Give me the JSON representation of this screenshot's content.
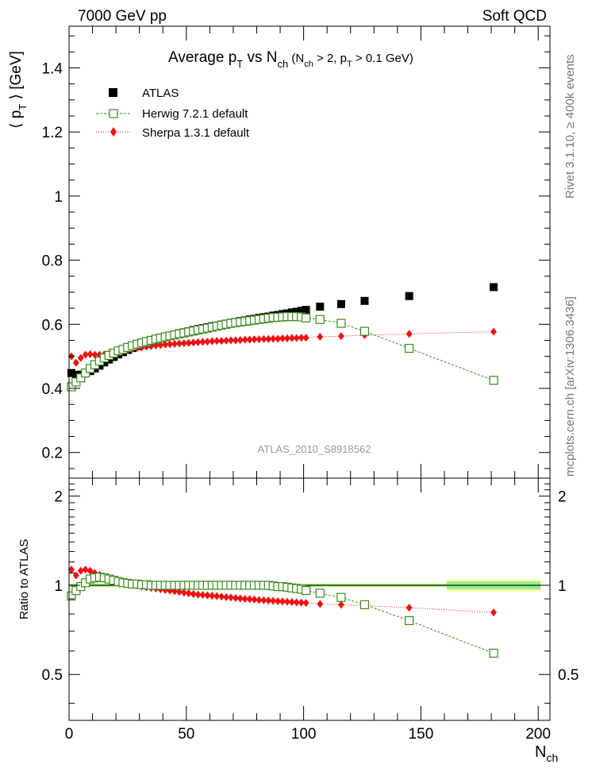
{
  "header": {
    "left": "7000 GeV pp",
    "right": "Soft QCD"
  },
  "side_labels": {
    "rivet": "Rivet 3.1.10, ≥ 400k events",
    "mcplots": "mcplots.cern.ch [arXiv:1306.3436]"
  },
  "watermark": "ATLAS_2010_S8918562",
  "colors": {
    "atlas": "#000000",
    "herwig": "#3a8a1e",
    "sherpa": "#ee1111",
    "band_inner": "#90ee90",
    "band_outer": "#ffff88"
  },
  "chart_data": [
    {
      "type": "scatter",
      "title": "Average p_T vs N_ch (N_ch > 2, p_T > 0.1 GeV)",
      "title_parts": {
        "a": "Average p",
        "b": "T",
        "c": " vs N",
        "d": "ch",
        "e": " (N",
        "f": "ch",
        "g": " > 2, p",
        "h": "T",
        "i": " > 0.1 GeV)"
      },
      "ylabel": "⟨ p_T ⟩ [GeV]",
      "ylabel_parts": {
        "a": "⟨ p",
        "b": "T",
        "c": " ⟩ [GeV]"
      },
      "xlim": [
        0,
        205
      ],
      "ylim": [
        0.12,
        1.53
      ],
      "yticks": [
        "0.2",
        "0.4",
        "0.6",
        "0.8",
        "1",
        "1.2",
        "1.4"
      ],
      "legend_position": "top-left",
      "series": [
        {
          "name": "ATLAS",
          "marker": "filled-square",
          "x": [
            1,
            3,
            5,
            7,
            9,
            11,
            13,
            15,
            17,
            19,
            21,
            23,
            25,
            27,
            29,
            31,
            33,
            35,
            37,
            39,
            41,
            43,
            45,
            47,
            49,
            51,
            53,
            55,
            57,
            59,
            61,
            63,
            65,
            67,
            69,
            71,
            73,
            75,
            77,
            79,
            81,
            83,
            85,
            87,
            89,
            91,
            93,
            95,
            97,
            99,
            101,
            107,
            116,
            126,
            145,
            181
          ],
          "y": [
            0.448,
            0.442,
            0.443,
            0.447,
            0.454,
            0.462,
            0.471,
            0.481,
            0.49,
            0.498,
            0.506,
            0.513,
            0.52,
            0.526,
            0.532,
            0.537,
            0.542,
            0.547,
            0.552,
            0.556,
            0.56,
            0.564,
            0.568,
            0.572,
            0.575,
            0.578,
            0.582,
            0.585,
            0.588,
            0.591,
            0.594,
            0.596,
            0.599,
            0.602,
            0.605,
            0.607,
            0.61,
            0.612,
            0.615,
            0.617,
            0.62,
            0.622,
            0.624,
            0.627,
            0.629,
            0.632,
            0.634,
            0.637,
            0.639,
            0.642,
            0.645,
            0.655,
            0.663,
            0.673,
            0.688,
            0.716
          ]
        },
        {
          "name": "Herwig 7.2.1 default",
          "marker": "open-square",
          "line": "dashed",
          "x": [
            1,
            3,
            5,
            7,
            9,
            11,
            13,
            15,
            17,
            19,
            21,
            23,
            25,
            27,
            29,
            31,
            33,
            35,
            37,
            39,
            41,
            43,
            45,
            47,
            49,
            51,
            53,
            55,
            57,
            59,
            61,
            63,
            65,
            67,
            69,
            71,
            73,
            75,
            77,
            79,
            81,
            83,
            85,
            87,
            89,
            91,
            93,
            95,
            97,
            99,
            101,
            107,
            116,
            126,
            145,
            181
          ],
          "y": [
            0.405,
            0.42,
            0.433,
            0.448,
            0.462,
            0.474,
            0.485,
            0.495,
            0.503,
            0.51,
            0.517,
            0.522,
            0.528,
            0.533,
            0.538,
            0.542,
            0.546,
            0.55,
            0.554,
            0.557,
            0.561,
            0.564,
            0.567,
            0.57,
            0.573,
            0.576,
            0.579,
            0.582,
            0.585,
            0.588,
            0.591,
            0.594,
            0.597,
            0.6,
            0.603,
            0.605,
            0.607,
            0.609,
            0.611,
            0.613,
            0.615,
            0.617,
            0.619,
            0.621,
            0.622,
            0.623,
            0.624,
            0.624,
            0.624,
            0.623,
            0.62,
            0.615,
            0.603,
            0.578,
            0.525,
            0.425
          ]
        },
        {
          "name": "Sherpa 1.3.1 default",
          "marker": "filled-diamond",
          "line": "dotted",
          "x": [
            1,
            3,
            5,
            7,
            9,
            11,
            13,
            15,
            17,
            19,
            21,
            23,
            25,
            27,
            29,
            31,
            33,
            35,
            37,
            39,
            41,
            43,
            45,
            47,
            49,
            51,
            53,
            55,
            57,
            59,
            61,
            63,
            65,
            67,
            69,
            71,
            73,
            75,
            77,
            79,
            81,
            83,
            85,
            87,
            89,
            91,
            93,
            95,
            97,
            99,
            101,
            107,
            116,
            126,
            145,
            181
          ],
          "y": [
            0.5,
            0.48,
            0.495,
            0.505,
            0.507,
            0.505,
            0.505,
            0.506,
            0.508,
            0.511,
            0.514,
            0.517,
            0.52,
            0.523,
            0.526,
            0.528,
            0.53,
            0.532,
            0.534,
            0.535,
            0.537,
            0.538,
            0.539,
            0.54,
            0.541,
            0.542,
            0.543,
            0.544,
            0.545,
            0.546,
            0.547,
            0.548,
            0.548,
            0.549,
            0.55,
            0.55,
            0.551,
            0.552,
            0.552,
            0.553,
            0.553,
            0.554,
            0.554,
            0.555,
            0.555,
            0.556,
            0.556,
            0.557,
            0.557,
            0.558,
            0.558,
            0.561,
            0.563,
            0.566,
            0.57,
            0.577
          ]
        }
      ]
    },
    {
      "type": "scatter",
      "ylabel": "Ratio to ATLAS",
      "xlabel": "N_ch",
      "xlabel_parts": {
        "a": "N",
        "b": "ch"
      },
      "xlim": [
        0,
        205
      ],
      "ylim": [
        0.35,
        2.3
      ],
      "yticks": [
        "0.5",
        "1",
        "2"
      ],
      "xticks": [
        "0",
        "50",
        "100",
        "150",
        "200"
      ],
      "uncertainty_band": {
        "x_range": [
          0,
          205
        ],
        "inner": [
          {
            "x": [
              0,
              161
            ],
            "lo": 0.99,
            "hi": 1.01
          },
          {
            "x": [
              161,
              201
            ],
            "lo": 0.97,
            "hi": 1.03
          }
        ],
        "outer": [
          {
            "x": [
              0,
              161
            ],
            "lo": 0.985,
            "hi": 1.015
          },
          {
            "x": [
              161,
              201
            ],
            "lo": 0.955,
            "hi": 1.045
          }
        ]
      },
      "series": [
        {
          "name": "Herwig 7.2.1 default",
          "marker": "open-square",
          "line": "dashed",
          "x": [
            1,
            3,
            5,
            7,
            9,
            11,
            13,
            15,
            17,
            19,
            21,
            23,
            25,
            27,
            29,
            31,
            33,
            35,
            37,
            39,
            41,
            43,
            45,
            47,
            49,
            51,
            53,
            55,
            57,
            59,
            61,
            63,
            65,
            67,
            69,
            71,
            73,
            75,
            77,
            79,
            81,
            83,
            85,
            87,
            89,
            91,
            93,
            95,
            97,
            99,
            101,
            107,
            116,
            126,
            145,
            181
          ],
          "y": [
            0.92,
            0.96,
            0.99,
            1.02,
            1.05,
            1.06,
            1.065,
            1.06,
            1.05,
            1.04,
            1.03,
            1.02,
            1.015,
            1.01,
            1.01,
            1.005,
            1.005,
            1.0,
            1.0,
            1.0,
            1.0,
            1.0,
            1.0,
            1.0,
            1.0,
            1.0,
            1.0,
            1.0,
            1.0,
            1.0,
            1.0,
            1.0,
            1.0,
            1.0,
            1.0,
            1.0,
            1.0,
            1.0,
            1.0,
            1.0,
            1.0,
            1.0,
            1.0,
            0.995,
            0.99,
            0.99,
            0.985,
            0.98,
            0.975,
            0.97,
            0.96,
            0.94,
            0.91,
            0.86,
            0.76,
            0.59
          ]
        },
        {
          "name": "Sherpa 1.3.1 default",
          "marker": "filled-diamond",
          "line": "dotted",
          "x": [
            1,
            3,
            5,
            7,
            9,
            11,
            13,
            15,
            17,
            19,
            21,
            23,
            25,
            27,
            29,
            31,
            33,
            35,
            37,
            39,
            41,
            43,
            45,
            47,
            49,
            51,
            53,
            55,
            57,
            59,
            61,
            63,
            65,
            67,
            69,
            71,
            73,
            75,
            77,
            79,
            81,
            83,
            85,
            87,
            89,
            91,
            93,
            95,
            97,
            99,
            101,
            107,
            116,
            126,
            145,
            181
          ],
          "y": [
            1.13,
            1.08,
            1.12,
            1.13,
            1.12,
            1.1,
            1.085,
            1.07,
            1.06,
            1.05,
            1.04,
            1.03,
            1.02,
            1.01,
            1.0,
            0.99,
            0.985,
            0.98,
            0.975,
            0.97,
            0.965,
            0.96,
            0.955,
            0.95,
            0.945,
            0.94,
            0.935,
            0.93,
            0.928,
            0.925,
            0.922,
            0.92,
            0.916,
            0.912,
            0.91,
            0.906,
            0.903,
            0.9,
            0.898,
            0.895,
            0.892,
            0.89,
            0.888,
            0.886,
            0.884,
            0.882,
            0.88,
            0.878,
            0.876,
            0.874,
            0.872,
            0.865,
            0.86,
            0.855,
            0.84,
            0.81
          ]
        }
      ]
    }
  ]
}
